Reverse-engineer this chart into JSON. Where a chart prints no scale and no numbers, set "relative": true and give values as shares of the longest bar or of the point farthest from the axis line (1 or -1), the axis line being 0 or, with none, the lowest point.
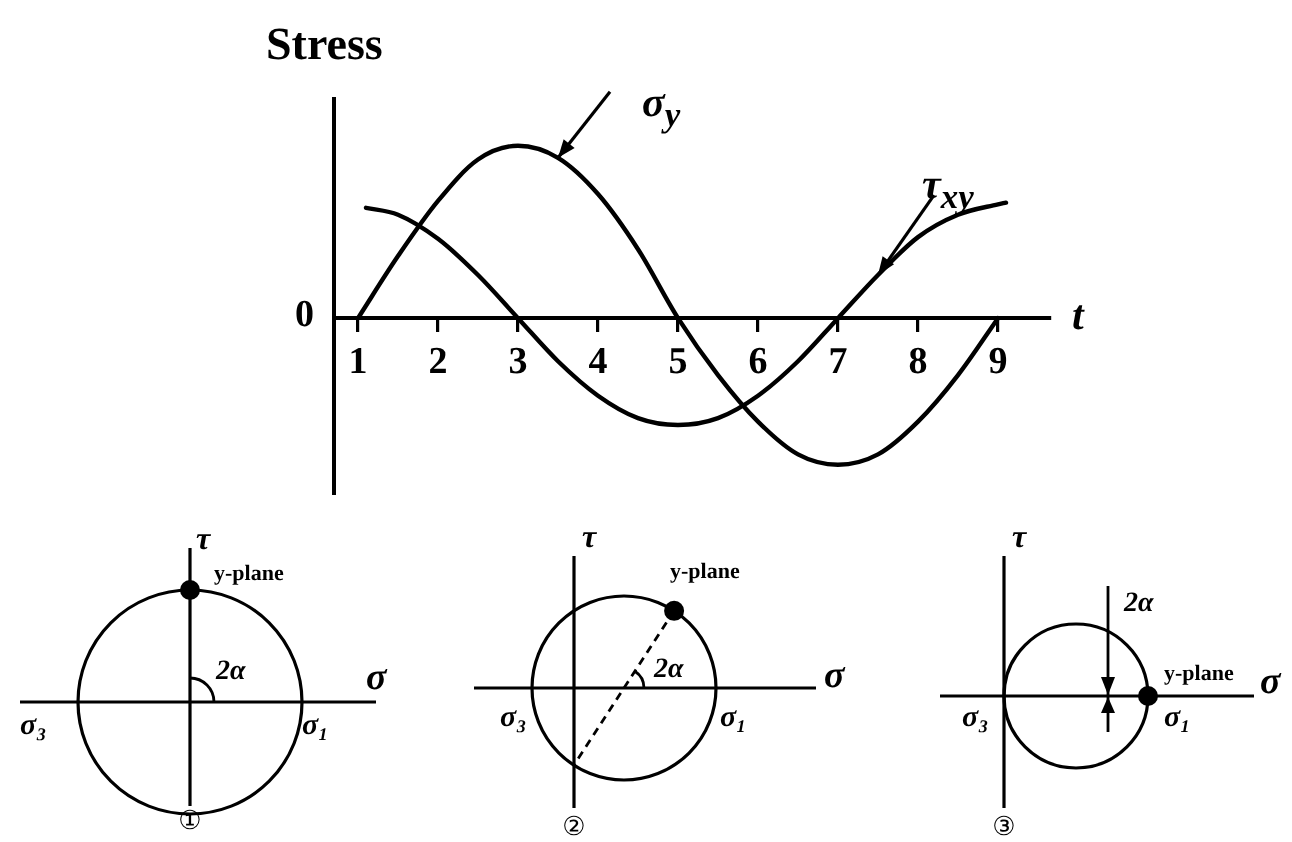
{
  "chart_data": [
    {
      "type": "line",
      "title": "Stress",
      "xlabel": "t",
      "relative": true,
      "xlim": [
        0.7,
        9.65
      ],
      "xticks": [
        1,
        2,
        3,
        4,
        5,
        6,
        7,
        8,
        9
      ],
      "marker": "none",
      "annotations": [
        "0"
      ],
      "series": [
        {
          "name": "σ$_{y}$",
          "color": "#000000",
          "x": [
            1,
            1.5,
            2,
            2.5,
            3,
            3.5,
            4,
            4.5,
            5,
            5.5,
            6,
            6.5,
            7,
            7.5,
            8,
            8.5,
            9
          ],
          "values": [
            0,
            0.36,
            0.68,
            0.92,
            1,
            0.93,
            0.72,
            0.4,
            0,
            -0.33,
            -0.6,
            -0.79,
            -0.85,
            -0.79,
            -0.6,
            -0.33,
            0
          ]
        },
        {
          "name": "τ$_{xy}$",
          "color": "#000000",
          "x": [
            1.1,
            1.5,
            2,
            2.5,
            3,
            3.5,
            4,
            4.5,
            5,
            5.5,
            6,
            6.5,
            7,
            7.5,
            8,
            8.5,
            9,
            9.1
          ],
          "values": [
            0.64,
            0.6,
            0.46,
            0.25,
            0,
            -0.25,
            -0.45,
            -0.58,
            -0.62,
            -0.58,
            -0.45,
            -0.25,
            0,
            0.25,
            0.47,
            0.6,
            0.66,
            0.67
          ]
        }
      ]
    },
    {
      "type": "other",
      "xlabel": "σ",
      "ylabel": "τ",
      "annotations": [
        "y-plane",
        "2α",
        "σ₃",
        "σ₁",
        "①"
      ]
    },
    {
      "type": "other",
      "xlabel": "σ",
      "ylabel": "τ",
      "annotations": [
        "y-plane",
        "2α",
        "σ₃",
        "σ₁",
        "②"
      ]
    },
    {
      "type": "other",
      "xlabel": "σ",
      "ylabel": "τ",
      "annotations": [
        "y-plane",
        "2α",
        "σ₃",
        "σ₁",
        "③"
      ]
    }
  ]
}
